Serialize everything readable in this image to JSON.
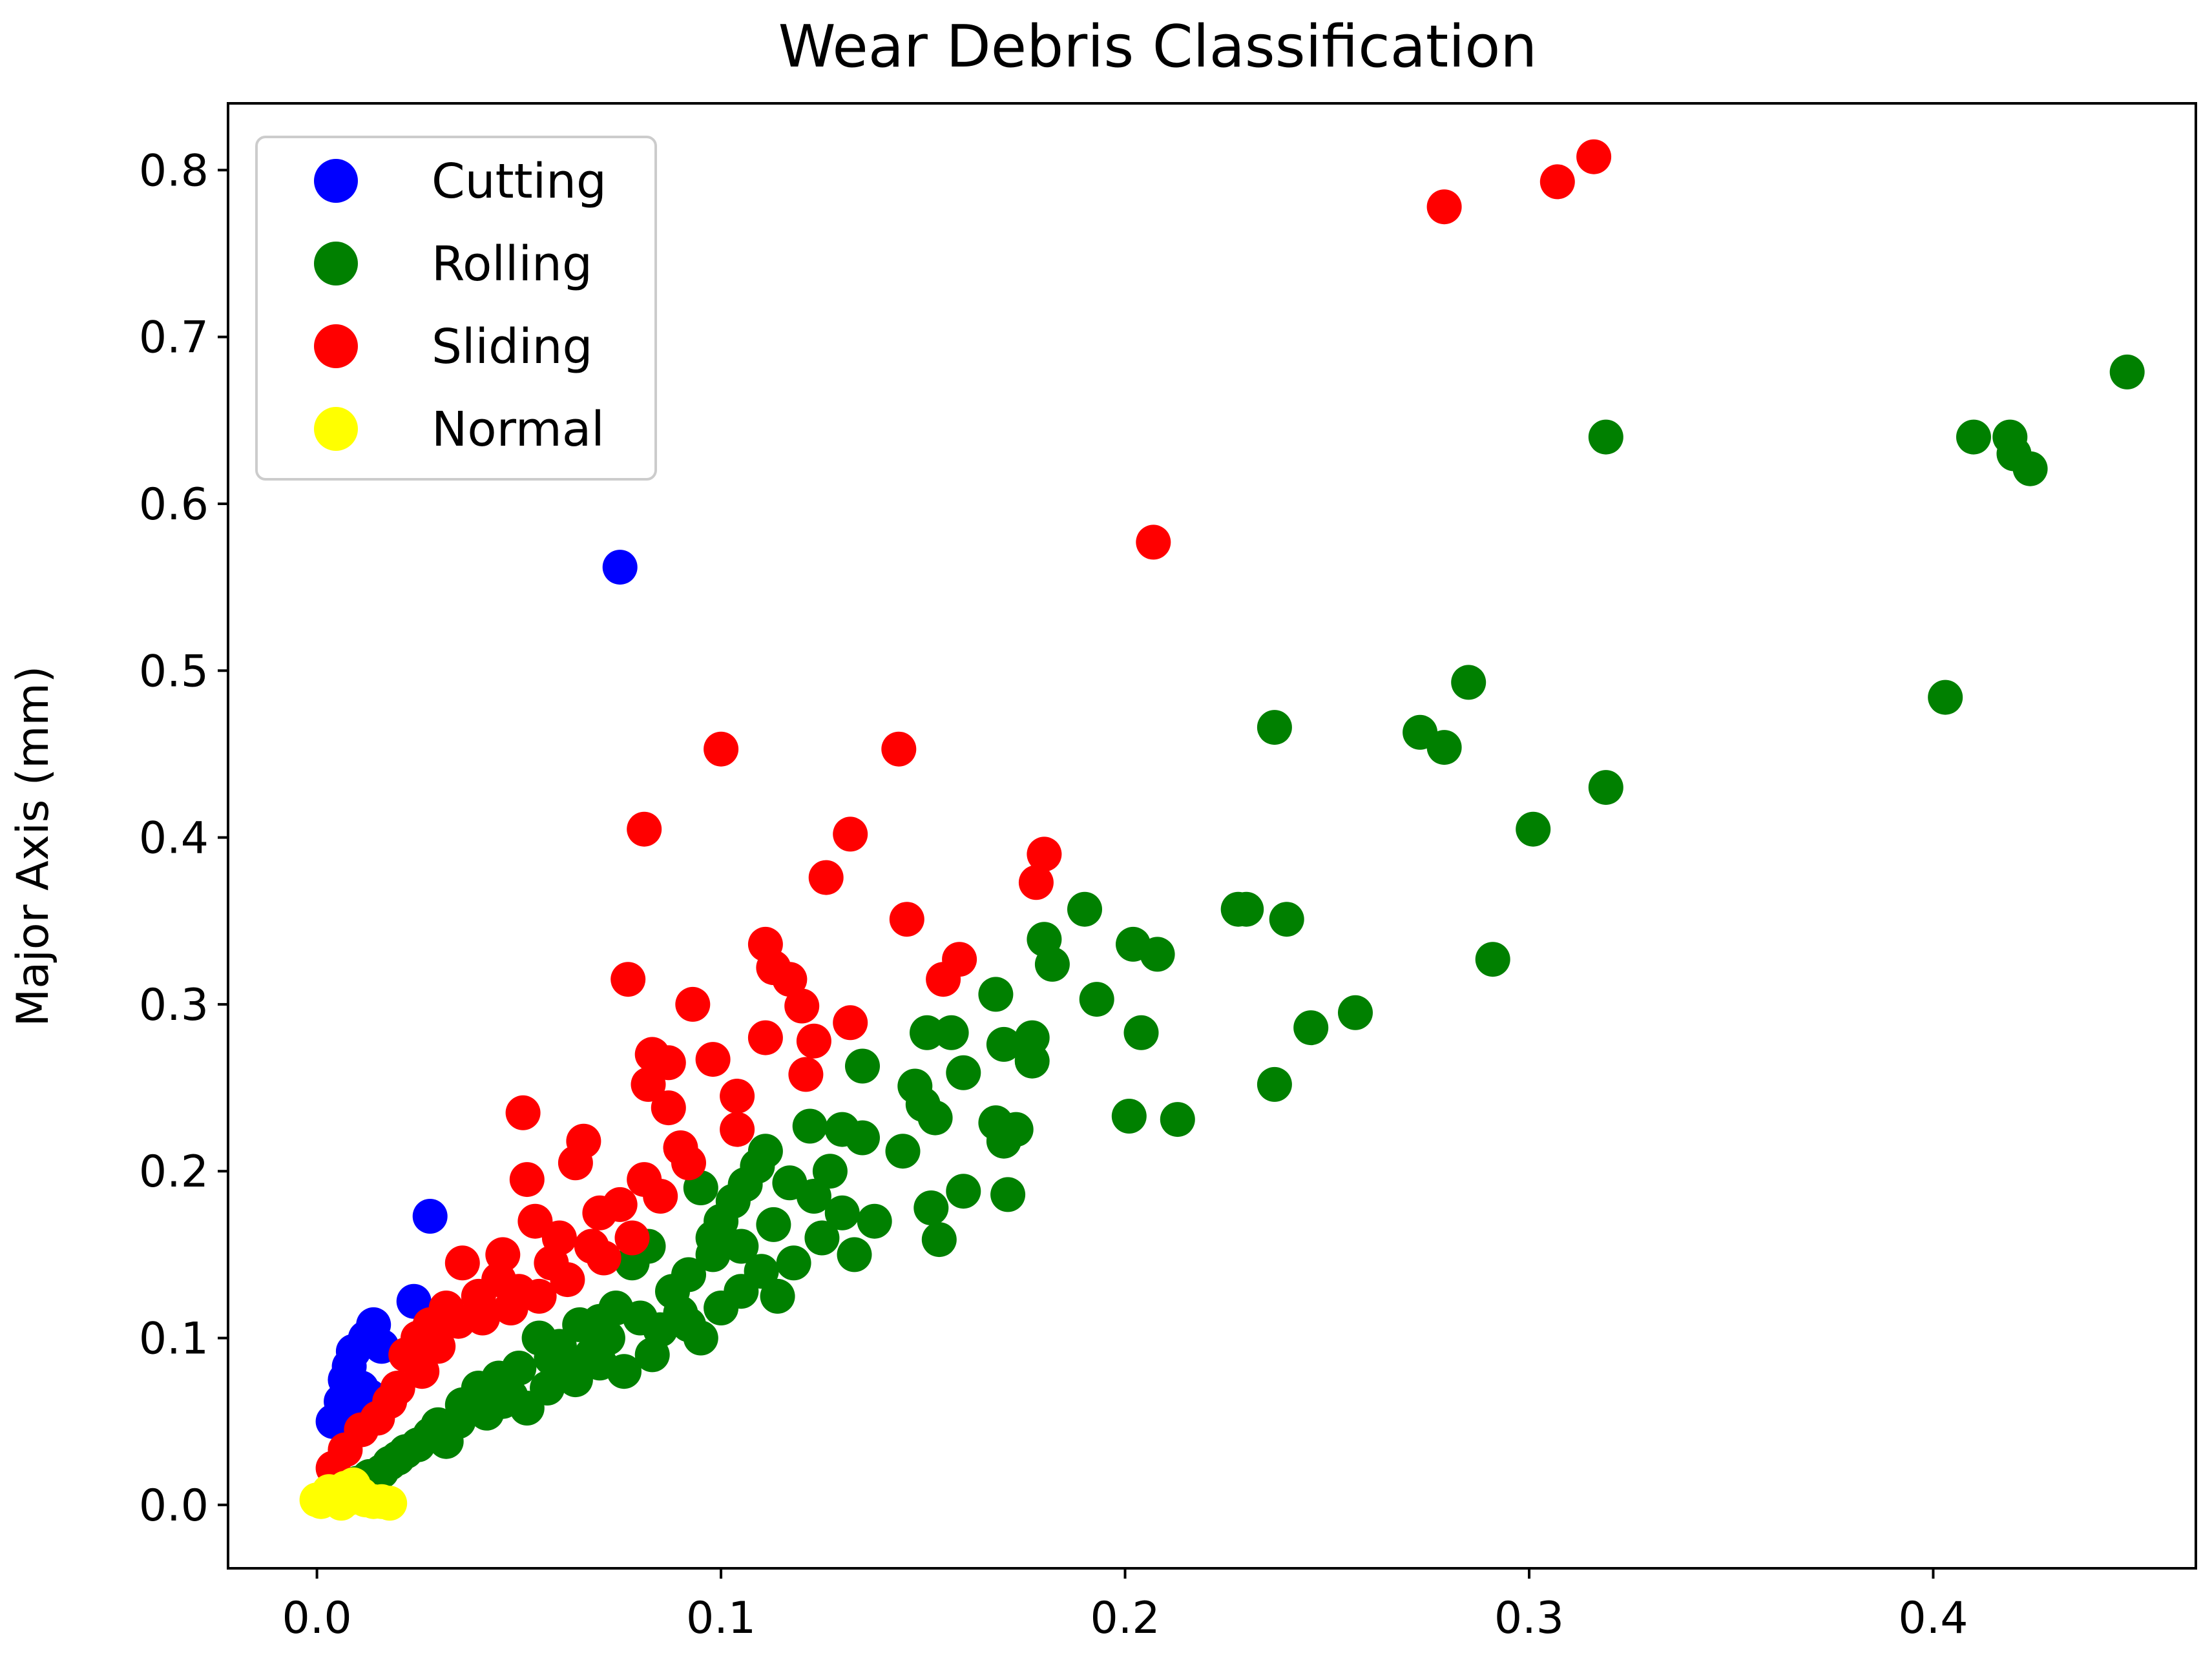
{
  "chart_data": {
    "type": "scatter",
    "title": "Wear Debris Classification",
    "xlabel": "",
    "ylabel": "Major Axis (mm)",
    "xlim": [
      -0.022,
      0.465
    ],
    "ylim": [
      -0.038,
      0.84
    ],
    "xticks": [
      0.0,
      0.1,
      0.2,
      0.3,
      0.4
    ],
    "yticks": [
      0.0,
      0.1,
      0.2,
      0.3,
      0.4,
      0.5,
      0.6,
      0.7,
      0.8
    ],
    "xtick_labels": [
      "0.0",
      "0.1",
      "0.2",
      "0.3",
      "0.4"
    ],
    "ytick_labels": [
      "0.0",
      "0.1",
      "0.2",
      "0.3",
      "0.4",
      "0.5",
      "0.6",
      "0.7",
      "0.8"
    ],
    "grid": false,
    "legend_position": "top-left",
    "series": [
      {
        "name": "Cutting",
        "color": "#0000ff",
        "points": [
          [
            0.075,
            0.562
          ],
          [
            0.028,
            0.173
          ],
          [
            0.024,
            0.122
          ],
          [
            0.014,
            0.108
          ],
          [
            0.012,
            0.1
          ],
          [
            0.009,
            0.092
          ],
          [
            0.008,
            0.083
          ],
          [
            0.007,
            0.075
          ],
          [
            0.011,
            0.07
          ],
          [
            0.006,
            0.062
          ],
          [
            0.004,
            0.05
          ],
          [
            0.013,
            0.065
          ],
          [
            0.016,
            0.095
          ],
          [
            0.01,
            0.058
          ],
          [
            0.008,
            0.044
          ]
        ]
      },
      {
        "name": "Rolling",
        "color": "#008000",
        "points": [
          [
            0.448,
            0.679
          ],
          [
            0.319,
            0.64
          ],
          [
            0.41,
            0.64
          ],
          [
            0.419,
            0.64
          ],
          [
            0.42,
            0.63
          ],
          [
            0.424,
            0.621
          ],
          [
            0.285,
            0.493
          ],
          [
            0.403,
            0.484
          ],
          [
            0.237,
            0.466
          ],
          [
            0.273,
            0.463
          ],
          [
            0.279,
            0.454
          ],
          [
            0.319,
            0.43
          ],
          [
            0.301,
            0.405
          ],
          [
            0.19,
            0.357
          ],
          [
            0.228,
            0.357
          ],
          [
            0.23,
            0.357
          ],
          [
            0.24,
            0.351
          ],
          [
            0.18,
            0.339
          ],
          [
            0.202,
            0.336
          ],
          [
            0.208,
            0.33
          ],
          [
            0.182,
            0.324
          ],
          [
            0.291,
            0.327
          ],
          [
            0.168,
            0.306
          ],
          [
            0.193,
            0.303
          ],
          [
            0.257,
            0.295
          ],
          [
            0.151,
            0.283
          ],
          [
            0.157,
            0.283
          ],
          [
            0.204,
            0.283
          ],
          [
            0.246,
            0.286
          ],
          [
            0.17,
            0.276
          ],
          [
            0.177,
            0.28
          ],
          [
            0.16,
            0.259
          ],
          [
            0.177,
            0.266
          ],
          [
            0.135,
            0.263
          ],
          [
            0.148,
            0.251
          ],
          [
            0.237,
            0.252
          ],
          [
            0.15,
            0.24
          ],
          [
            0.153,
            0.232
          ],
          [
            0.201,
            0.233
          ],
          [
            0.213,
            0.231
          ],
          [
            0.168,
            0.229
          ],
          [
            0.173,
            0.225
          ],
          [
            0.17,
            0.218
          ],
          [
            0.135,
            0.22
          ],
          [
            0.13,
            0.225
          ],
          [
            0.122,
            0.227
          ],
          [
            0.145,
            0.212
          ],
          [
            0.111,
            0.212
          ],
          [
            0.109,
            0.203
          ],
          [
            0.117,
            0.193
          ],
          [
            0.123,
            0.185
          ],
          [
            0.16,
            0.188
          ],
          [
            0.171,
            0.186
          ],
          [
            0.152,
            0.178
          ],
          [
            0.13,
            0.175
          ],
          [
            0.095,
            0.19
          ],
          [
            0.103,
            0.182
          ],
          [
            0.138,
            0.17
          ],
          [
            0.125,
            0.16
          ],
          [
            0.154,
            0.159
          ],
          [
            0.133,
            0.15
          ],
          [
            0.118,
            0.145
          ],
          [
            0.11,
            0.14
          ],
          [
            0.098,
            0.15
          ],
          [
            0.092,
            0.138
          ],
          [
            0.105,
            0.128
          ],
          [
            0.114,
            0.125
          ],
          [
            0.1,
            0.118
          ],
          [
            0.088,
            0.128
          ],
          [
            0.078,
            0.145
          ],
          [
            0.082,
            0.155
          ],
          [
            0.09,
            0.115
          ],
          [
            0.08,
            0.112
          ],
          [
            0.074,
            0.118
          ],
          [
            0.085,
            0.105
          ],
          [
            0.07,
            0.11
          ],
          [
            0.072,
            0.1
          ],
          [
            0.065,
            0.108
          ],
          [
            0.06,
            0.095
          ],
          [
            0.055,
            0.1
          ],
          [
            0.058,
            0.088
          ],
          [
            0.05,
            0.082
          ],
          [
            0.062,
            0.082
          ],
          [
            0.068,
            0.09
          ],
          [
            0.045,
            0.076
          ],
          [
            0.048,
            0.065
          ],
          [
            0.04,
            0.07
          ],
          [
            0.036,
            0.06
          ],
          [
            0.042,
            0.055
          ],
          [
            0.035,
            0.05
          ],
          [
            0.03,
            0.048
          ],
          [
            0.028,
            0.042
          ],
          [
            0.025,
            0.036
          ],
          [
            0.032,
            0.038
          ],
          [
            0.022,
            0.032
          ],
          [
            0.02,
            0.028
          ],
          [
            0.018,
            0.025
          ],
          [
            0.016,
            0.02
          ],
          [
            0.013,
            0.017
          ],
          [
            0.01,
            0.013
          ],
          [
            0.008,
            0.01
          ],
          [
            0.005,
            0.007
          ],
          [
            0.076,
            0.08
          ],
          [
            0.083,
            0.09
          ],
          [
            0.095,
            0.1
          ],
          [
            0.092,
            0.108
          ],
          [
            0.1,
            0.17
          ],
          [
            0.098,
            0.16
          ],
          [
            0.105,
            0.155
          ],
          [
            0.106,
            0.192
          ],
          [
            0.113,
            0.168
          ],
          [
            0.127,
            0.2
          ],
          [
            0.057,
            0.07
          ],
          [
            0.052,
            0.058
          ],
          [
            0.064,
            0.075
          ],
          [
            0.07,
            0.085
          ],
          [
            0.046,
            0.062
          ]
        ]
      },
      {
        "name": "Sliding",
        "color": "#ff0000",
        "points": [
          [
            0.316,
            0.808
          ],
          [
            0.307,
            0.793
          ],
          [
            0.279,
            0.778
          ],
          [
            0.207,
            0.577
          ],
          [
            0.1,
            0.453
          ],
          [
            0.144,
            0.453
          ],
          [
            0.081,
            0.405
          ],
          [
            0.132,
            0.402
          ],
          [
            0.126,
            0.376
          ],
          [
            0.18,
            0.39
          ],
          [
            0.178,
            0.373
          ],
          [
            0.146,
            0.351
          ],
          [
            0.111,
            0.336
          ],
          [
            0.113,
            0.322
          ],
          [
            0.159,
            0.327
          ],
          [
            0.155,
            0.315
          ],
          [
            0.077,
            0.315
          ],
          [
            0.093,
            0.3
          ],
          [
            0.117,
            0.315
          ],
          [
            0.12,
            0.299
          ],
          [
            0.132,
            0.289
          ],
          [
            0.111,
            0.28
          ],
          [
            0.123,
            0.278
          ],
          [
            0.121,
            0.258
          ],
          [
            0.083,
            0.27
          ],
          [
            0.087,
            0.265
          ],
          [
            0.098,
            0.267
          ],
          [
            0.082,
            0.252
          ],
          [
            0.104,
            0.245
          ],
          [
            0.087,
            0.238
          ],
          [
            0.051,
            0.235
          ],
          [
            0.104,
            0.225
          ],
          [
            0.09,
            0.214
          ],
          [
            0.092,
            0.205
          ],
          [
            0.066,
            0.218
          ],
          [
            0.064,
            0.205
          ],
          [
            0.052,
            0.195
          ],
          [
            0.081,
            0.195
          ],
          [
            0.075,
            0.18
          ],
          [
            0.085,
            0.185
          ],
          [
            0.07,
            0.175
          ],
          [
            0.054,
            0.17
          ],
          [
            0.06,
            0.16
          ],
          [
            0.046,
            0.15
          ],
          [
            0.036,
            0.145
          ],
          [
            0.058,
            0.145
          ],
          [
            0.068,
            0.155
          ],
          [
            0.045,
            0.135
          ],
          [
            0.05,
            0.128
          ],
          [
            0.04,
            0.125
          ],
          [
            0.032,
            0.118
          ],
          [
            0.035,
            0.11
          ],
          [
            0.028,
            0.108
          ],
          [
            0.025,
            0.1
          ],
          [
            0.03,
            0.095
          ],
          [
            0.022,
            0.09
          ],
          [
            0.026,
            0.08
          ],
          [
            0.02,
            0.07
          ],
          [
            0.018,
            0.062
          ],
          [
            0.015,
            0.052
          ],
          [
            0.011,
            0.045
          ],
          [
            0.007,
            0.033
          ],
          [
            0.004,
            0.022
          ],
          [
            0.062,
            0.135
          ],
          [
            0.071,
            0.148
          ],
          [
            0.078,
            0.16
          ],
          [
            0.041,
            0.112
          ],
          [
            0.048,
            0.118
          ],
          [
            0.055,
            0.125
          ]
        ]
      },
      {
        "name": "Normal",
        "color": "#ffff00",
        "points": [
          [
            0.0,
            0.003
          ],
          [
            0.002,
            0.005
          ],
          [
            0.003,
            0.004
          ],
          [
            0.004,
            0.007
          ],
          [
            0.005,
            0.003
          ],
          [
            0.006,
            0.006
          ],
          [
            0.007,
            0.01
          ],
          [
            0.008,
            0.004
          ],
          [
            0.009,
            0.012
          ],
          [
            0.01,
            0.008
          ],
          [
            0.011,
            0.006
          ],
          [
            0.012,
            0.003
          ],
          [
            0.014,
            0.002
          ],
          [
            0.016,
            0.002
          ],
          [
            0.018,
            0.001
          ],
          [
            0.001,
            0.002
          ],
          [
            0.003,
            0.008
          ],
          [
            0.006,
            0.001
          ]
        ]
      }
    ]
  }
}
